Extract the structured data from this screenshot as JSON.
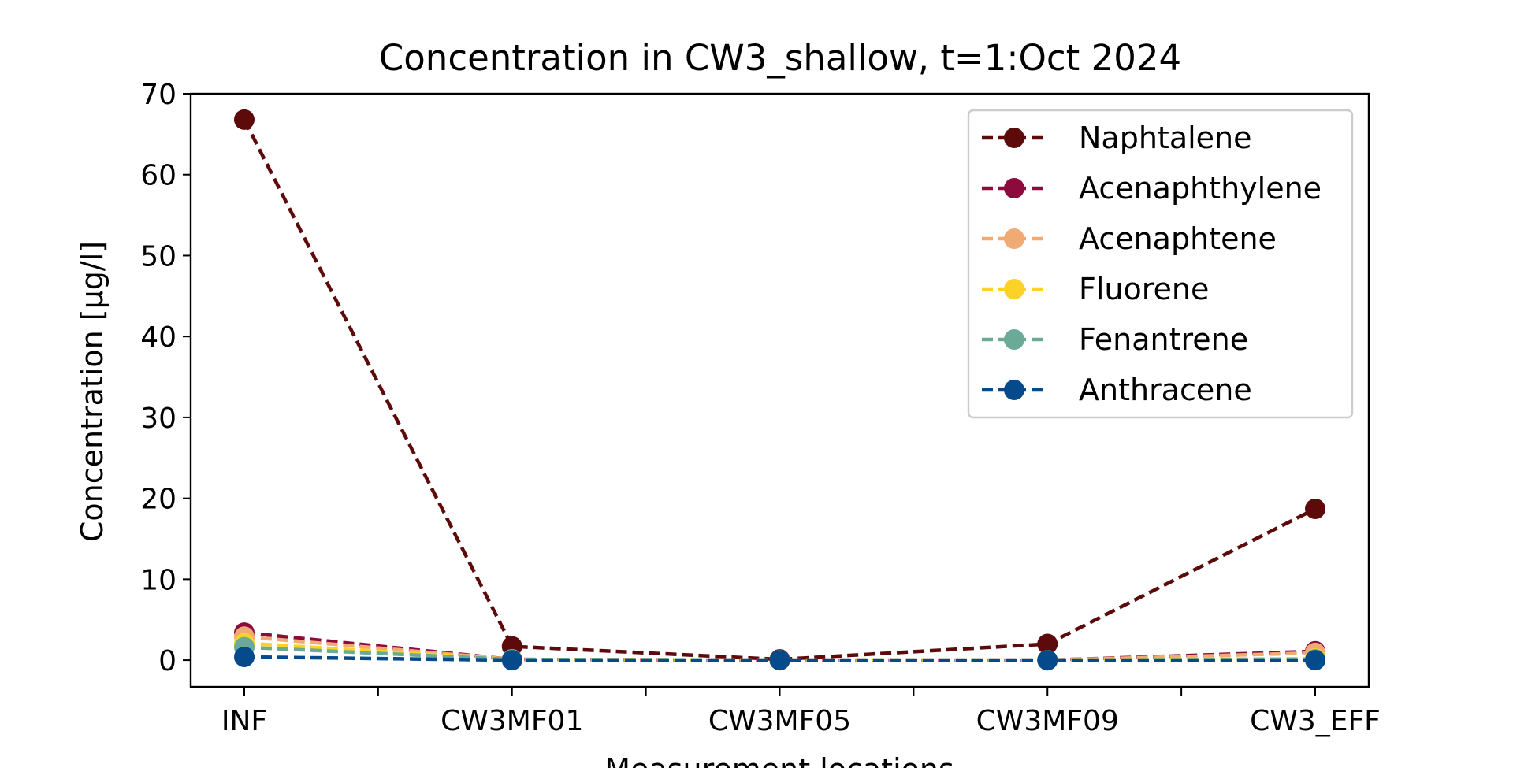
{
  "chart_data": {
    "type": "line",
    "title": "Concentration in CW3_shallow, t=1:Oct 2024",
    "xlabel": "Measurement locations",
    "ylabel": "Concentration [µg/l]",
    "categories": [
      "INF",
      "CW3MF01",
      "CW3MF05",
      "CW3MF09",
      "CW3_EFF"
    ],
    "ylim": [
      -3.3,
      70
    ],
    "yticks": [
      0,
      10,
      20,
      30,
      40,
      50,
      60,
      70
    ],
    "grid": false,
    "legend_position": "upper right",
    "line_style": "dashed",
    "marker": "circle",
    "series": [
      {
        "name": "Naphtalene",
        "color": "#5c0a0a",
        "values": [
          66.8,
          1.7,
          0.1,
          2.0,
          18.7
        ]
      },
      {
        "name": "Acenaphthylene",
        "color": "#8c0a3c",
        "values": [
          3.4,
          0.1,
          0.0,
          0.0,
          1.1
        ]
      },
      {
        "name": "Acenaphtene",
        "color": "#f0aa73",
        "values": [
          2.9,
          0.1,
          0.0,
          0.0,
          0.9
        ]
      },
      {
        "name": "Fluorene",
        "color": "#fcd128",
        "values": [
          2.1,
          0.1,
          0.0,
          0.0,
          0.2
        ]
      },
      {
        "name": "Fenantrene",
        "color": "#6aaa96",
        "values": [
          1.6,
          0.1,
          0.0,
          0.0,
          0.1
        ]
      },
      {
        "name": "Anthracene",
        "color": "#054a8a",
        "values": [
          0.4,
          0.0,
          0.0,
          0.0,
          0.0
        ]
      }
    ]
  }
}
